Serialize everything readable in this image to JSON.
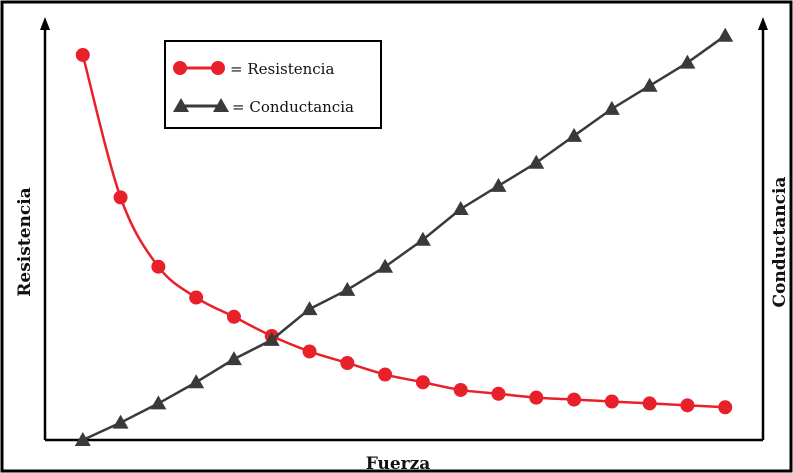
{
  "chart_data": {
    "type": "line",
    "xlabel": "Fuerza",
    "ylabel_left": "Resistencia",
    "ylabel_right": "Conductancia",
    "x": [
      1,
      2,
      3,
      4,
      5,
      6,
      7,
      8,
      9,
      10,
      11,
      12,
      13,
      14,
      15,
      16,
      17,
      18
    ],
    "xlim": [
      0,
      19
    ],
    "ylim": [
      0,
      1.07
    ],
    "grid": false,
    "legend_position": "top-left",
    "axis_ticks": false,
    "series": [
      {
        "name": "Resistencia",
        "color": "#e8202a",
        "marker": "circle",
        "values": [
          1.0,
          0.63,
          0.45,
          0.37,
          0.32,
          0.27,
          0.23,
          0.2,
          0.17,
          0.15,
          0.13,
          0.12,
          0.11,
          0.105,
          0.1,
          0.095,
          0.09,
          0.085
        ],
        "legend_label": "= Resistencia"
      },
      {
        "name": "Conductancia",
        "color": "#3a3a3a",
        "marker": "triangle",
        "values": [
          0.0,
          0.045,
          0.095,
          0.15,
          0.21,
          0.26,
          0.34,
          0.39,
          0.45,
          0.52,
          0.6,
          0.66,
          0.72,
          0.79,
          0.86,
          0.92,
          0.98,
          1.05
        ],
        "legend_label": "= Conductancia"
      }
    ]
  }
}
